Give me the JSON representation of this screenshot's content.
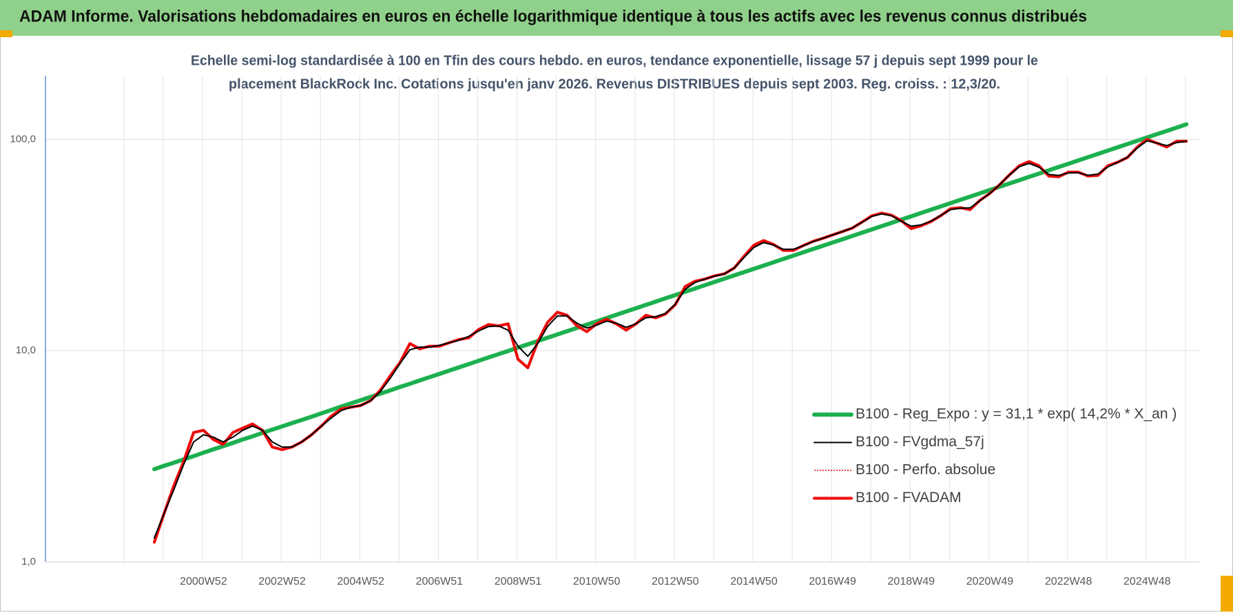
{
  "chart_data": {
    "type": "line",
    "title": "ADAM Informe. Valorisations hebdomadaires en euros en échelle logarithmique identique à tous les actifs avec les revenus connus distribués",
    "subtitle": [
      "Echelle semi-log standardisée à 100 en Tfin des cours hebdo. en euros, tendance exponentielle, lissage 57 j depuis sept 1999 pour le",
      "placement BlackRock Inc. Cotations jusqu'en janv 2026. Revenus DISTRIBUES depuis sept 2003. Reg. croiss. : 12,3/20."
    ],
    "categories": [
      null,
      null,
      null,
      null,
      null,
      "2000W52",
      null,
      null,
      null,
      null,
      null,
      null,
      null,
      "2002W52",
      null,
      null,
      null,
      null,
      null,
      null,
      null,
      "2004W52",
      null,
      null,
      null,
      null,
      null,
      null,
      null,
      "2006W51",
      null,
      null,
      null,
      null,
      null,
      null,
      null,
      "2008W51",
      null,
      null,
      null,
      null,
      null,
      null,
      null,
      "2010W50",
      null,
      null,
      null,
      null,
      null,
      null,
      null,
      "2012W50",
      null,
      null,
      null,
      null,
      null,
      null,
      null,
      "2014W50",
      null,
      null,
      null,
      null,
      null,
      null,
      null,
      "2016W49",
      null,
      null,
      null,
      null,
      null,
      null,
      null,
      "2018W49",
      null,
      null,
      null,
      null,
      null,
      null,
      null,
      "2020W49",
      null,
      null,
      null,
      null,
      null,
      null,
      null,
      "2022W48",
      null,
      null,
      null,
      null,
      null,
      null,
      null,
      "2024W48",
      null,
      null,
      null,
      null
    ],
    "series": [
      {
        "name": "B100 - Reg_Expo : y = 31,1 * exp( 14,2% *  X_an )",
        "color": "#1db04f",
        "style": "solid",
        "values": [
          2.75,
          2.85,
          2.95,
          3.06,
          3.17,
          3.29,
          3.41,
          3.53,
          3.66,
          3.8,
          3.93,
          4.08,
          4.23,
          4.38,
          4.54,
          4.7,
          4.87,
          5.05,
          5.24,
          5.43,
          5.63,
          5.83,
          6.04,
          6.26,
          6.49,
          6.73,
          6.97,
          7.23,
          7.49,
          7.76,
          8.05,
          8.34,
          8.64,
          8.96,
          9.29,
          9.62,
          9.97,
          10.34,
          10.71,
          11.1,
          11.51,
          11.93,
          12.36,
          12.81,
          13.28,
          13.76,
          14.26,
          14.78,
          15.32,
          15.88,
          16.46,
          17.06,
          17.68,
          18.32,
          18.99,
          19.68,
          20.4,
          21.14,
          21.91,
          22.71,
          23.54,
          24.39,
          25.28,
          26.2,
          27.16,
          28.15,
          29.17,
          30.24,
          31.34,
          32.48,
          33.66,
          34.89,
          36.16,
          37.48,
          38.84,
          40.26,
          41.72,
          43.24,
          44.82,
          46.45,
          48.14,
          49.9,
          51.71,
          53.6,
          55.55,
          57.58,
          59.67,
          61.85,
          64.1,
          66.44,
          68.86,
          71.37,
          73.97,
          76.66,
          79.46,
          82.35,
          85.35,
          88.46,
          91.69,
          95.03,
          98.49,
          102.08,
          105.8,
          109.66,
          113.65,
          117.79
        ]
      },
      {
        "name": "B100 - FVgdma_57j",
        "color": "#000000",
        "style": "solid",
        "values": [
          1.3,
          1.7,
          2.2,
          2.9,
          3.7,
          4.0,
          3.9,
          3.7,
          3.9,
          4.2,
          4.4,
          4.2,
          3.7,
          3.5,
          3.5,
          3.7,
          4.0,
          4.4,
          4.8,
          5.2,
          5.4,
          5.5,
          5.8,
          6.4,
          7.4,
          8.7,
          10.1,
          10.4,
          10.4,
          10.6,
          10.9,
          11.2,
          11.7,
          12.4,
          13.0,
          13.1,
          12.5,
          10.5,
          9.4,
          10.8,
          13.0,
          14.6,
          14.6,
          13.5,
          12.8,
          13.2,
          13.8,
          13.5,
          12.9,
          13.4,
          14.3,
          14.5,
          15.0,
          16.6,
          19.5,
          21.0,
          21.8,
          22.5,
          23.1,
          24.6,
          27.6,
          30.8,
          32.5,
          31.6,
          30.2,
          30.2,
          31.3,
          32.8,
          34.0,
          35.3,
          36.6,
          38.1,
          40.5,
          43.2,
          44.4,
          43.5,
          41.0,
          38.8,
          39.4,
          41.0,
          43.6,
          46.5,
          47.2,
          47.4,
          51.3,
          55.5,
          61.0,
          67.8,
          74.2,
          77.0,
          73.8,
          68.3,
          67.5,
          69.3,
          69.5,
          67.6,
          68.5,
          74.0,
          77.8,
          82.4,
          91.0,
          98.5,
          96.0,
          93.5,
          96.5,
          98.0
        ]
      },
      {
        "name": "B100 - Perfo. absolue",
        "color": "#e00000",
        "style": "dotted",
        "values": [
          1.24,
          1.7,
          2.3,
          3.0,
          4.1,
          4.2,
          3.8,
          3.6,
          4.1,
          4.3,
          4.5,
          4.2,
          3.5,
          3.4,
          3.5,
          3.7,
          4.0,
          4.4,
          4.9,
          5.3,
          5.4,
          5.5,
          5.8,
          6.5,
          7.6,
          8.8,
          10.8,
          10.2,
          10.5,
          10.5,
          10.9,
          11.3,
          11.5,
          12.6,
          13.3,
          13.1,
          13.4,
          9.1,
          8.3,
          11.0,
          13.6,
          15.2,
          14.7,
          13.1,
          12.3,
          13.4,
          14.1,
          13.4,
          12.5,
          13.4,
          14.7,
          14.3,
          14.9,
          16.5,
          20.1,
          21.3,
          21.8,
          22.6,
          23.1,
          24.6,
          28,
          31.6,
          33.2,
          31.8,
          29.8,
          29.8,
          31.4,
          32.9,
          34,
          35.3,
          36.6,
          38,
          40.6,
          43.5,
          44.8,
          43.8,
          41.2,
          37.8,
          39,
          40.8,
          43.5,
          47,
          47.5,
          46.5,
          51.5,
          55.5,
          61,
          68,
          75,
          78.5,
          75,
          67,
          66.5,
          70,
          70,
          67,
          67.5,
          75,
          78,
          82,
          92,
          100,
          96,
          92,
          98,
          98
        ]
      },
      {
        "name": "B100 - FVADAM",
        "color": "#ee1111",
        "style": "solid",
        "values": [
          1.24,
          1.7,
          2.3,
          3.0,
          4.1,
          4.2,
          3.8,
          3.6,
          4.1,
          4.3,
          4.5,
          4.2,
          3.5,
          3.4,
          3.5,
          3.7,
          4.0,
          4.4,
          4.9,
          5.3,
          5.4,
          5.5,
          5.8,
          6.5,
          7.6,
          8.8,
          10.8,
          10.2,
          10.5,
          10.5,
          10.9,
          11.3,
          11.5,
          12.6,
          13.3,
          13.1,
          13.4,
          9.1,
          8.3,
          11.0,
          13.6,
          15.2,
          14.7,
          13.1,
          12.3,
          13.4,
          14.1,
          13.4,
          12.5,
          13.4,
          14.7,
          14.3,
          14.9,
          16.5,
          20.1,
          21.3,
          21.8,
          22.6,
          23.1,
          24.6,
          28,
          31.6,
          33.2,
          31.8,
          29.8,
          29.8,
          31.4,
          32.9,
          34,
          35.3,
          36.6,
          38,
          40.6,
          43.5,
          44.8,
          43.8,
          41.2,
          37.8,
          39,
          40.8,
          43.5,
          47,
          47.5,
          46.5,
          51.5,
          55.5,
          61,
          68,
          75,
          78.5,
          75,
          67,
          66.5,
          70,
          70,
          67,
          67.5,
          75,
          78,
          82,
          92,
          100,
          96,
          92,
          98,
          98
        ]
      }
    ],
    "ylim": [
      1,
      200
    ],
    "yticks": [
      {
        "value": 1,
        "label": "1,0"
      },
      {
        "value": 10,
        "label": "10,0"
      },
      {
        "value": 100,
        "label": "100,0"
      }
    ],
    "log_y": true,
    "grid": true,
    "legend": "lower right"
  }
}
